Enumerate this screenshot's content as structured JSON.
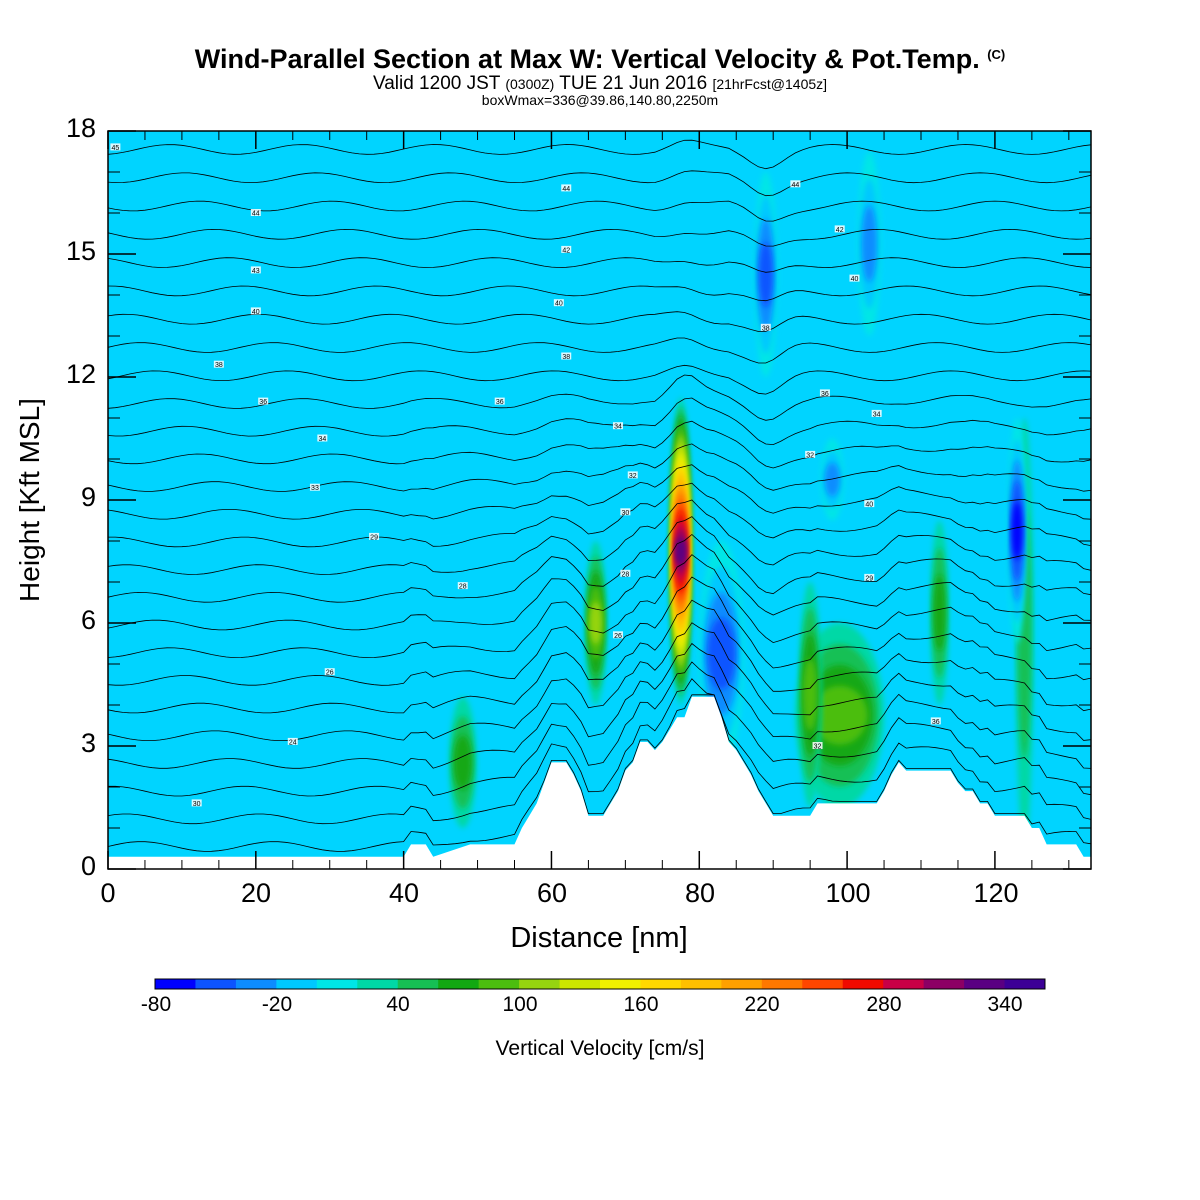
{
  "title": {
    "main": "Wind-Parallel Section at Max W: Vertical Velocity & Pot.Temp.",
    "copyright": "(C)",
    "valid_a": "Valid 1200 JST",
    "valid_b": "(0300Z)",
    "valid_c": "TUE 21 Jun 2016",
    "valid_d": "[21hrFcst@1405z]",
    "box": "boxWmax=336@39.86,140.80,2250m"
  },
  "chart_data": {
    "type": "heatmap",
    "xlabel": "Distance [nm]",
    "ylabel": "Height [Kft MSL]",
    "xlim": [
      0,
      133
    ],
    "ylim": [
      0,
      18
    ],
    "x_ticks": [
      "0",
      "20",
      "40",
      "60",
      "80",
      "100",
      "120"
    ],
    "y_ticks": [
      "0",
      "3",
      "6",
      "9",
      "12",
      "15",
      "18"
    ],
    "terrain": {
      "x": [
        0,
        40,
        41,
        43,
        44,
        49,
        55,
        56,
        57,
        58,
        59,
        60,
        61,
        62,
        63,
        64,
        65,
        66,
        67,
        68,
        69,
        70,
        71,
        72,
        73,
        74,
        75,
        76,
        77,
        78,
        79,
        80,
        81,
        82,
        83,
        84,
        85,
        86,
        87,
        88,
        89,
        90,
        91,
        92,
        93,
        94,
        95,
        96,
        97,
        98,
        99,
        100,
        101,
        102,
        103,
        104,
        105,
        106,
        107,
        108,
        109,
        110,
        111,
        112,
        113,
        114,
        115,
        116,
        117,
        118,
        119,
        120,
        121,
        122,
        123,
        124,
        125,
        126,
        127,
        128,
        129,
        130,
        131,
        132,
        133
      ],
      "height": [
        0.3,
        0.3,
        0.6,
        0.6,
        0.3,
        0.6,
        0.6,
        1.0,
        1.3,
        1.6,
        2.1,
        2.6,
        2.6,
        2.6,
        2.3,
        1.9,
        1.3,
        1.3,
        1.3,
        1.6,
        1.9,
        2.4,
        2.6,
        3.1,
        3.1,
        2.9,
        3.1,
        3.4,
        3.7,
        3.7,
        4.2,
        4.2,
        4.2,
        4.2,
        3.7,
        3.1,
        2.9,
        2.6,
        2.3,
        1.9,
        1.6,
        1.3,
        1.3,
        1.3,
        1.3,
        1.3,
        1.3,
        1.6,
        1.6,
        1.6,
        1.6,
        1.6,
        1.6,
        1.6,
        1.6,
        1.6,
        1.9,
        2.3,
        2.6,
        2.4,
        2.4,
        2.4,
        2.4,
        2.4,
        2.4,
        2.4,
        2.1,
        1.9,
        1.9,
        1.6,
        1.6,
        1.3,
        1.3,
        1.3,
        1.3,
        1.3,
        1.0,
        1.0,
        0.6,
        0.6,
        0.6,
        0.6,
        0.6,
        0.3,
        0.3
      ]
    },
    "features": [
      {
        "x": 77.5,
        "y_min": 4.0,
        "y_max": 11.5,
        "x_halfwidth": 1.4,
        "w": 336
      },
      {
        "x": 66,
        "y_min": 4.0,
        "y_max": 8.0,
        "x_halfwidth": 1.4,
        "w": 110
      },
      {
        "x": 99,
        "y_min": 1.5,
        "y_max": 6.0,
        "x_halfwidth": 6,
        "w": 80
      },
      {
        "x": 95,
        "y_min": 1.5,
        "y_max": 7.0,
        "x_halfwidth": 1.5,
        "w": 90
      },
      {
        "x": 112.5,
        "y_min": 4.0,
        "y_max": 8.5,
        "x_halfwidth": 1.2,
        "w": 70
      },
      {
        "x": 48,
        "y_min": 1.0,
        "y_max": 4.2,
        "x_halfwidth": 1.8,
        "w": 60
      },
      {
        "x": 124,
        "y_min": 0.5,
        "y_max": 11.0,
        "x_halfwidth": 1.2,
        "w": 45
      },
      {
        "x": 83,
        "y_min": 2.5,
        "y_max": 8.0,
        "x_halfwidth": 3,
        "w": -60
      },
      {
        "x": 89,
        "y_min": 12.0,
        "y_max": 17.0,
        "x_halfwidth": 1.5,
        "w": -60
      },
      {
        "x": 123,
        "y_min": 5.5,
        "y_max": 11.0,
        "x_halfwidth": 1.2,
        "w": -80
      },
      {
        "x": 98,
        "y_min": 8.5,
        "y_max": 10.5,
        "x_halfwidth": 1.5,
        "w": -50
      },
      {
        "x": 103,
        "y_min": 13.0,
        "y_max": 17.5,
        "x_halfwidth": 1.5,
        "w": -40
      }
    ],
    "theta_contours": {
      "base_value": 24,
      "interval": 1,
      "count": 26,
      "labels": [
        {
          "x": 1,
          "y": 17.6,
          "text": "45"
        },
        {
          "x": 20,
          "y": 16.0,
          "text": "44"
        },
        {
          "x": 62,
          "y": 16.6,
          "text": "44"
        },
        {
          "x": 93,
          "y": 16.7,
          "text": "44"
        },
        {
          "x": 99,
          "y": 15.6,
          "text": "42"
        },
        {
          "x": 62,
          "y": 15.1,
          "text": "42"
        },
        {
          "x": 20,
          "y": 14.6,
          "text": "43"
        },
        {
          "x": 101,
          "y": 14.4,
          "text": "40"
        },
        {
          "x": 61,
          "y": 13.8,
          "text": "40"
        },
        {
          "x": 20,
          "y": 13.6,
          "text": "40"
        },
        {
          "x": 89,
          "y": 13.2,
          "text": "38"
        },
        {
          "x": 62,
          "y": 12.5,
          "text": "38"
        },
        {
          "x": 15,
          "y": 12.3,
          "text": "38"
        },
        {
          "x": 97,
          "y": 11.6,
          "text": "36"
        },
        {
          "x": 21,
          "y": 11.4,
          "text": "36"
        },
        {
          "x": 53,
          "y": 11.4,
          "text": "36"
        },
        {
          "x": 104,
          "y": 11.1,
          "text": "34"
        },
        {
          "x": 69,
          "y": 10.8,
          "text": "34"
        },
        {
          "x": 29,
          "y": 10.5,
          "text": "34"
        },
        {
          "x": 95,
          "y": 10.1,
          "text": "32"
        },
        {
          "x": 71,
          "y": 9.6,
          "text": "32"
        },
        {
          "x": 28,
          "y": 9.3,
          "text": "33"
        },
        {
          "x": 103,
          "y": 8.9,
          "text": "40"
        },
        {
          "x": 70,
          "y": 8.7,
          "text": "30"
        },
        {
          "x": 36,
          "y": 8.1,
          "text": "29"
        },
        {
          "x": 70,
          "y": 7.2,
          "text": "28"
        },
        {
          "x": 103,
          "y": 7.1,
          "text": "29"
        },
        {
          "x": 48,
          "y": 6.9,
          "text": "28"
        },
        {
          "x": 69,
          "y": 5.7,
          "text": "26"
        },
        {
          "x": 30,
          "y": 4.8,
          "text": "26"
        },
        {
          "x": 112,
          "y": 3.6,
          "text": "36"
        },
        {
          "x": 25,
          "y": 3.1,
          "text": "24"
        },
        {
          "x": 96,
          "y": 3.0,
          "text": "32"
        },
        {
          "x": 12,
          "y": 1.6,
          "text": "30"
        }
      ]
    },
    "colorbar": {
      "label": "Vertical Velocity [cm/s]",
      "min": -80,
      "max": 360,
      "step": 20,
      "tick_labels": [
        "-80",
        "-20",
        "40",
        "100",
        "160",
        "220",
        "280",
        "340"
      ],
      "tick_values": [
        -80,
        -20,
        40,
        100,
        160,
        220,
        280,
        340
      ],
      "colors": [
        "#0000ff",
        "#0d54ff",
        "#0d8cff",
        "#00c8ff",
        "#00e6e6",
        "#00d8a6",
        "#16c054",
        "#12a812",
        "#4cbe10",
        "#96d410",
        "#cce600",
        "#f0f000",
        "#ffd800",
        "#ffc000",
        "#ffa000",
        "#ff7800",
        "#ff4600",
        "#f00a00",
        "#c80046",
        "#8c0064",
        "#5a0082",
        "#3c0096"
      ],
      "background_color": "#00d4ff"
    }
  }
}
